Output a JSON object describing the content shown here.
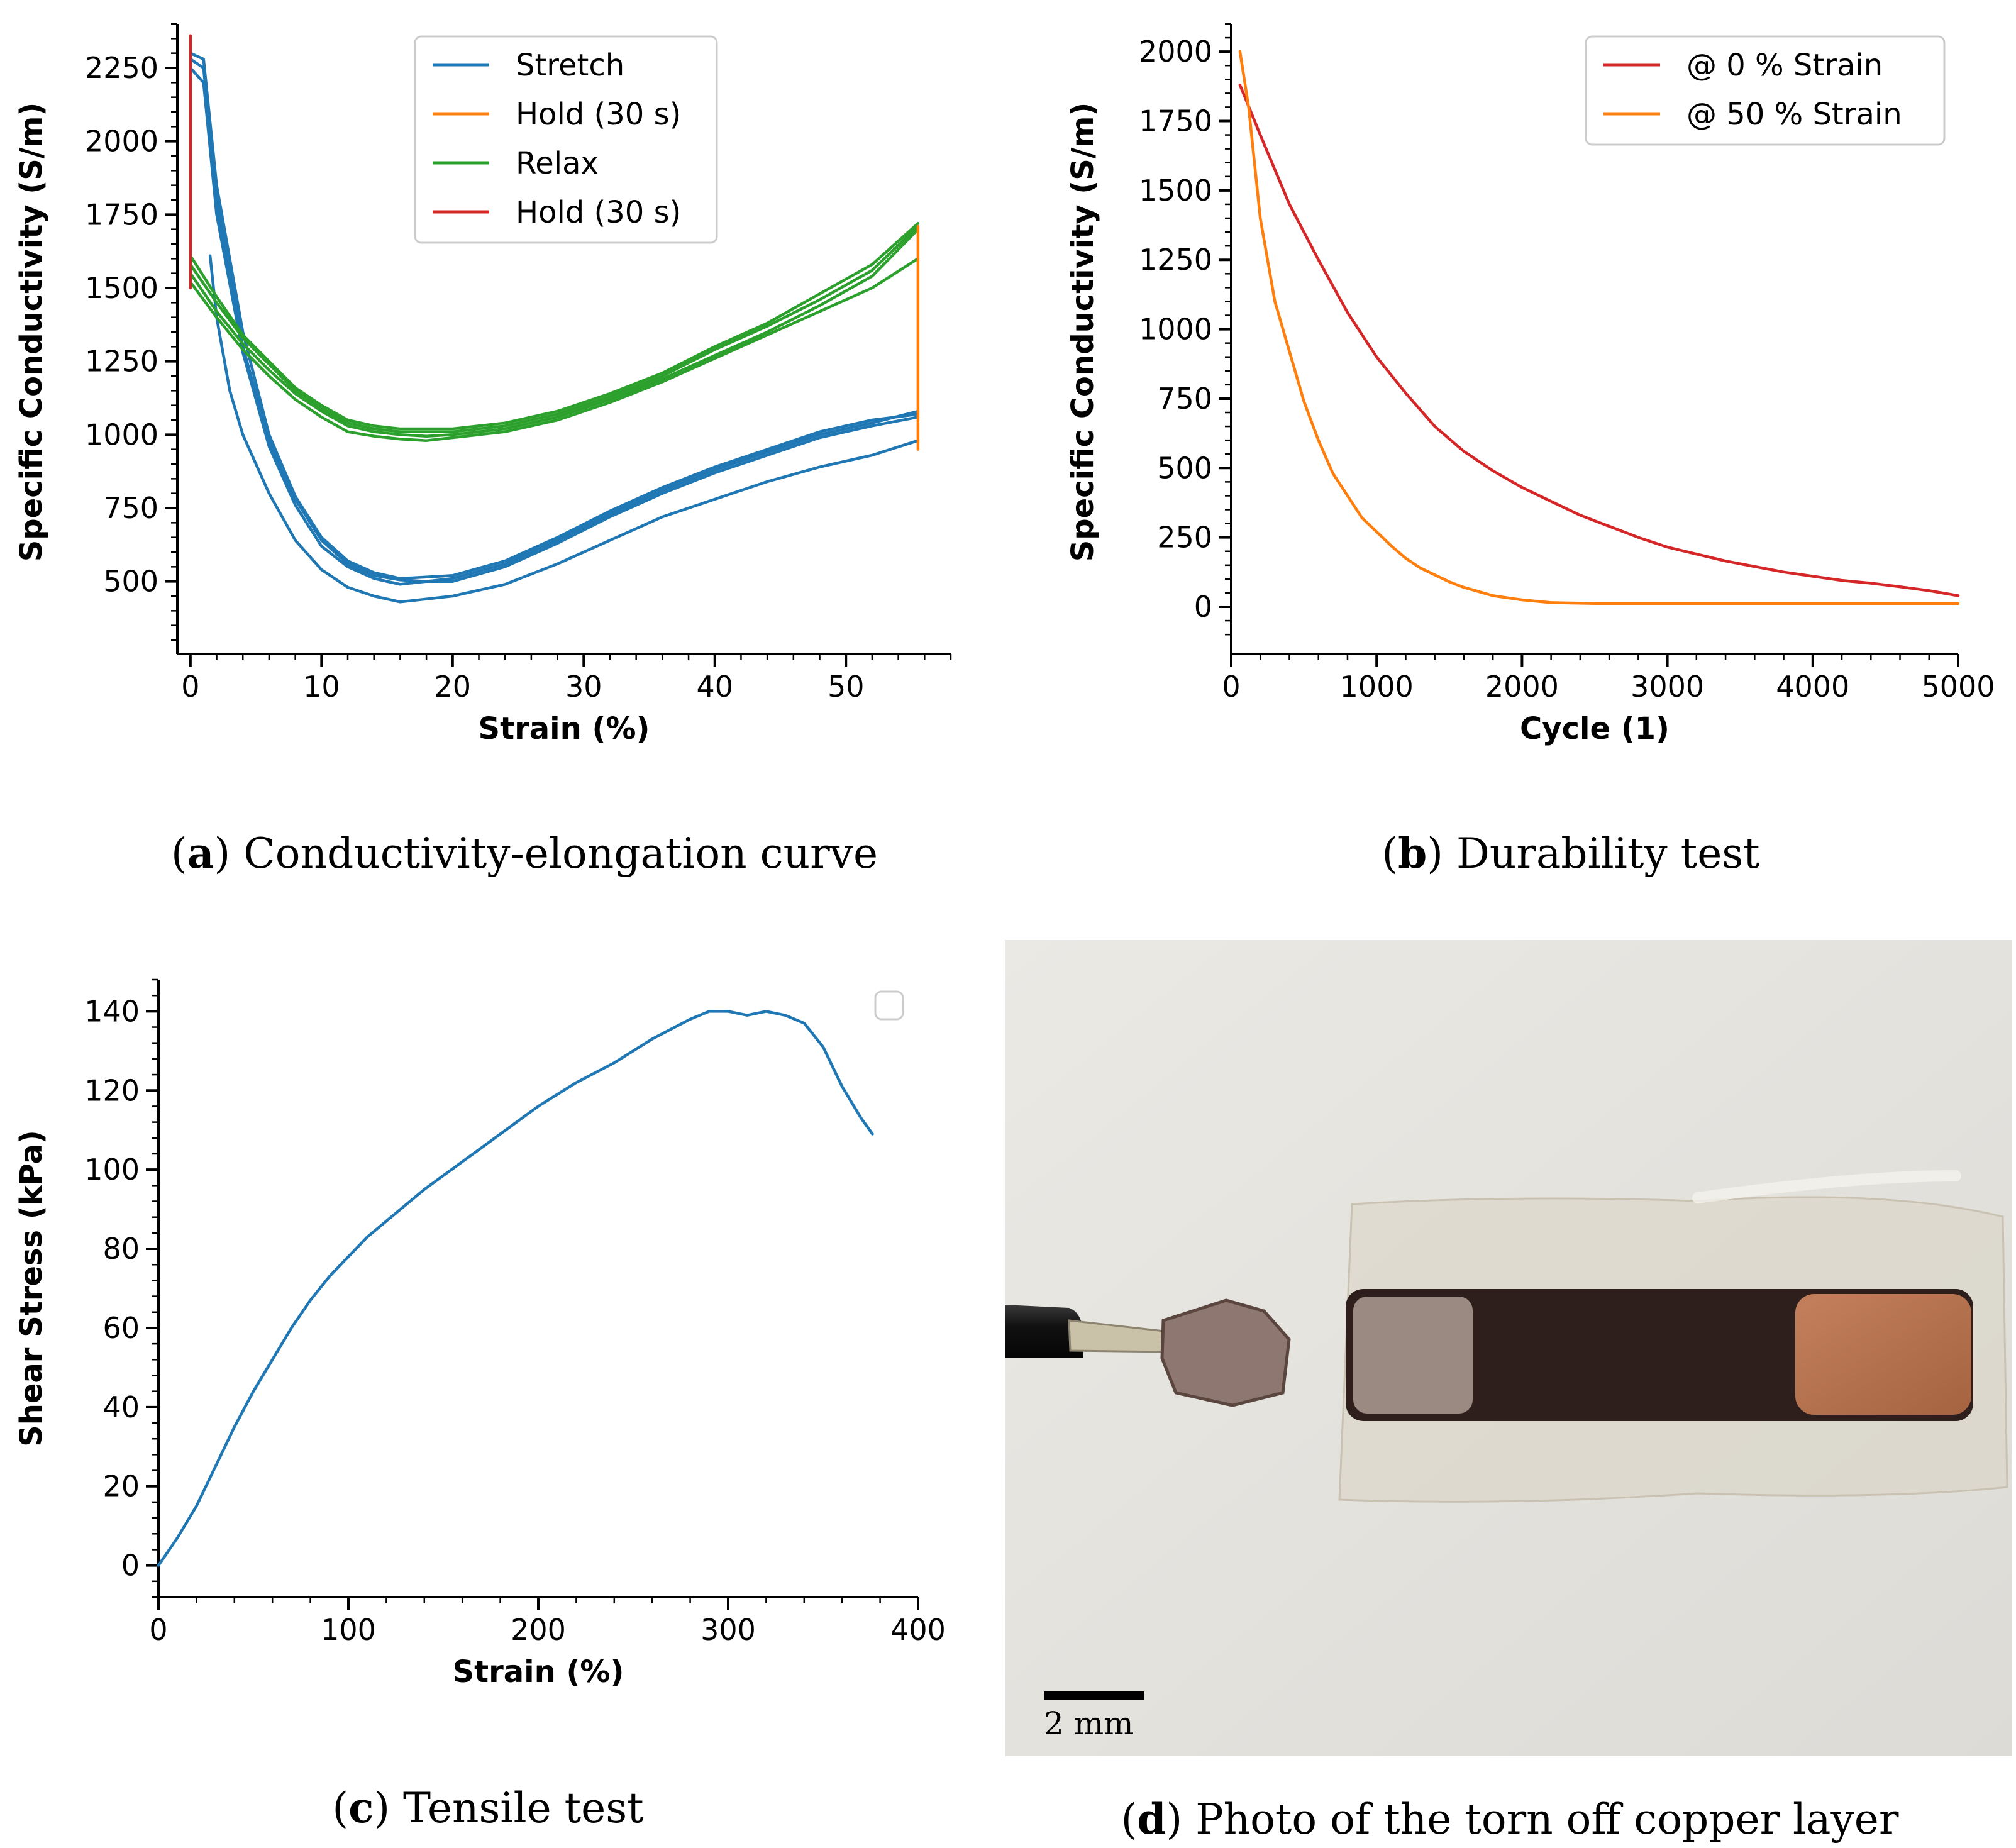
{
  "panels": {
    "a": {
      "letter": "a",
      "caption": "Conductivity-elongation curve"
    },
    "b": {
      "letter": "b",
      "caption": "Durability test"
    },
    "c": {
      "letter": "c",
      "caption": "Tensile test"
    },
    "d": {
      "letter": "d",
      "caption": "Photo of the torn off copper layer",
      "scale_bar_label": "2 mm"
    }
  },
  "colors": {
    "blue": "#1f77b4",
    "orange": "#ff7f0e",
    "green": "#2ca02c",
    "red": "#d62728"
  },
  "chart_data": [
    {
      "id": "a",
      "type": "line",
      "xlabel": "Strain (%)",
      "ylabel": "Specific Conductivity (S/m)",
      "xlim": [
        -1,
        58
      ],
      "ylim": [
        300,
        2400
      ],
      "xticks": [
        0,
        10,
        20,
        30,
        40,
        50
      ],
      "yticks": [
        500,
        750,
        1000,
        1250,
        1500,
        1750,
        2000,
        2250
      ],
      "legend_position": "top-center",
      "legend": [
        {
          "label": "Stretch",
          "color": "#1f77b4"
        },
        {
          "label": "Hold (30 s)",
          "color": "#ff7f0e"
        },
        {
          "label": "Relax",
          "color": "#2ca02c"
        },
        {
          "label": "Hold (30 s)",
          "color": "#d62728"
        }
      ],
      "series": [
        {
          "name": "Stretch",
          "color": "#1f77b4",
          "x": [
            0,
            1,
            2,
            4,
            6,
            8,
            10,
            12,
            14,
            16,
            18,
            20,
            24,
            28,
            32,
            36,
            40,
            44,
            48,
            52,
            55.5
          ],
          "y": [
            2280,
            2250,
            1800,
            1300,
            980,
            780,
            640,
            560,
            520,
            505,
            500,
            510,
            560,
            640,
            730,
            810,
            880,
            940,
            1000,
            1040,
            1080
          ]
        },
        {
          "name": "Stretch",
          "color": "#1f77b4",
          "x": [
            0,
            1,
            2,
            4,
            6,
            8,
            10,
            12,
            14,
            16,
            18,
            20,
            24,
            28,
            32,
            36,
            40,
            44,
            48,
            52,
            55.5
          ],
          "y": [
            2300,
            2280,
            1850,
            1350,
            1000,
            790,
            650,
            570,
            530,
            510,
            515,
            520,
            570,
            650,
            740,
            820,
            890,
            950,
            1010,
            1050,
            1070
          ]
        },
        {
          "name": "Stretch",
          "color": "#1f77b4",
          "x": [
            0,
            1,
            2,
            4,
            6,
            8,
            10,
            12,
            14,
            16,
            18,
            20,
            24,
            28,
            32,
            36,
            40,
            44,
            48,
            52,
            55.5
          ],
          "y": [
            2250,
            2200,
            1750,
            1280,
            960,
            760,
            620,
            550,
            510,
            490,
            500,
            500,
            550,
            630,
            720,
            800,
            870,
            930,
            990,
            1030,
            1060
          ]
        },
        {
          "name": "Stretch",
          "color": "#1f77b4",
          "x": [
            1.5,
            2,
            3,
            4,
            6,
            8,
            10,
            12,
            14,
            16,
            18,
            20,
            24,
            28,
            32,
            36,
            40,
            44,
            48,
            52,
            55.5
          ],
          "y": [
            1610,
            1400,
            1150,
            1000,
            800,
            640,
            540,
            480,
            450,
            430,
            440,
            450,
            490,
            560,
            640,
            720,
            780,
            840,
            890,
            930,
            980
          ]
        },
        {
          "name": "Relax",
          "color": "#2ca02c",
          "x": [
            55.5,
            52,
            48,
            44,
            40,
            36,
            32,
            28,
            24,
            20,
            18,
            16,
            14,
            12,
            10,
            8,
            6,
            4,
            2,
            0
          ],
          "y": [
            1710,
            1560,
            1460,
            1370,
            1290,
            1200,
            1130,
            1070,
            1030,
            1010,
            1010,
            1010,
            1020,
            1040,
            1090,
            1150,
            1240,
            1330,
            1450,
            1580
          ]
        },
        {
          "name": "Relax",
          "color": "#2ca02c",
          "x": [
            55.5,
            52,
            48,
            44,
            40,
            36,
            32,
            28,
            24,
            20,
            18,
            16,
            14,
            12,
            10,
            8,
            6,
            4,
            2,
            0
          ],
          "y": [
            1700,
            1540,
            1440,
            1350,
            1270,
            1190,
            1120,
            1060,
            1020,
            1000,
            995,
            1000,
            1010,
            1030,
            1080,
            1140,
            1220,
            1310,
            1420,
            1550
          ]
        },
        {
          "name": "Relax",
          "color": "#2ca02c",
          "x": [
            55.5,
            52,
            48,
            44,
            40,
            36,
            32,
            28,
            24,
            20,
            18,
            16,
            14,
            12,
            10,
            8,
            6,
            4,
            2,
            0
          ],
          "y": [
            1720,
            1580,
            1480,
            1380,
            1300,
            1210,
            1140,
            1080,
            1040,
            1020,
            1020,
            1020,
            1030,
            1050,
            1100,
            1160,
            1250,
            1340,
            1470,
            1610
          ]
        },
        {
          "name": "Relax",
          "color": "#2ca02c",
          "x": [
            55.5,
            52,
            48,
            44,
            40,
            36,
            32,
            28,
            24,
            20,
            18,
            16,
            14,
            12,
            10,
            8,
            6,
            4,
            2,
            0
          ],
          "y": [
            1600,
            1500,
            1420,
            1340,
            1260,
            1180,
            1110,
            1050,
            1010,
            990,
            980,
            985,
            995,
            1010,
            1060,
            1120,
            1200,
            1290,
            1400,
            1520
          ]
        },
        {
          "name": "Hold (30 s)",
          "color": "#ff7f0e",
          "x": [
            55.5,
            55.5
          ],
          "y": [
            950,
            1710
          ]
        },
        {
          "name": "Hold (30 s)",
          "color": "#d62728",
          "x": [
            0,
            0
          ],
          "y": [
            1500,
            2360
          ]
        }
      ]
    },
    {
      "id": "b",
      "type": "line",
      "xlabel": "Cycle (1)",
      "ylabel": "Specific Conductivity (S/m)",
      "xlim": [
        0,
        5000
      ],
      "ylim": [
        -120,
        2100
      ],
      "xticks": [
        0,
        1000,
        2000,
        3000,
        4000,
        5000
      ],
      "yticks": [
        0,
        250,
        500,
        750,
        1000,
        1250,
        1500,
        1750,
        2000
      ],
      "legend_position": "top-right",
      "legend": [
        {
          "label": "@ 0 % Strain",
          "color": "#d62728"
        },
        {
          "label": "@ 50 % Strain",
          "color": "#ff7f0e"
        }
      ],
      "series": [
        {
          "name": "@ 0 % Strain",
          "color": "#d62728",
          "x": [
            60,
            200,
            400,
            600,
            800,
            1000,
            1200,
            1400,
            1600,
            1800,
            2000,
            2200,
            2400,
            2600,
            2800,
            3000,
            3200,
            3400,
            3600,
            3800,
            4000,
            4200,
            4400,
            4600,
            4800,
            5000
          ],
          "y": [
            1880,
            1700,
            1450,
            1250,
            1060,
            900,
            770,
            650,
            560,
            490,
            430,
            380,
            330,
            290,
            250,
            215,
            190,
            165,
            145,
            125,
            110,
            95,
            85,
            72,
            58,
            40
          ]
        },
        {
          "name": "@ 50 % Strain",
          "color": "#ff7f0e",
          "x": [
            60,
            120,
            200,
            300,
            400,
            500,
            600,
            700,
            800,
            900,
            1000,
            1100,
            1200,
            1300,
            1400,
            1500,
            1600,
            1700,
            1800,
            2000,
            2200,
            2500,
            3000,
            4000,
            5000
          ],
          "y": [
            2000,
            1800,
            1400,
            1100,
            920,
            740,
            600,
            480,
            400,
            320,
            270,
            220,
            175,
            140,
            115,
            90,
            70,
            55,
            40,
            25,
            15,
            12,
            12,
            12,
            12
          ]
        }
      ]
    },
    {
      "id": "c",
      "type": "line",
      "xlabel": "Strain (%)",
      "ylabel": "Shear Stress (kPa)",
      "xlim": [
        0,
        400
      ],
      "ylim": [
        -8,
        148
      ],
      "xticks": [
        0,
        100,
        200,
        300,
        400
      ],
      "yticks": [
        0,
        20,
        40,
        60,
        80,
        100,
        120,
        140
      ],
      "legend_position": "top-right",
      "legend": [],
      "series": [
        {
          "name": "Shear Stress",
          "color": "#1f77b4",
          "x": [
            0,
            10,
            20,
            30,
            40,
            50,
            60,
            70,
            80,
            90,
            100,
            110,
            120,
            140,
            160,
            180,
            200,
            220,
            240,
            260,
            280,
            290,
            300,
            310,
            320,
            330,
            340,
            350,
            360,
            370,
            376
          ],
          "y": [
            0,
            7,
            15,
            25,
            35,
            44,
            52,
            60,
            67,
            73,
            78,
            83,
            87,
            95,
            102,
            109,
            116,
            122,
            127,
            133,
            138,
            140,
            140,
            139,
            140,
            139,
            137,
            131,
            121,
            113,
            109
          ]
        }
      ]
    }
  ]
}
